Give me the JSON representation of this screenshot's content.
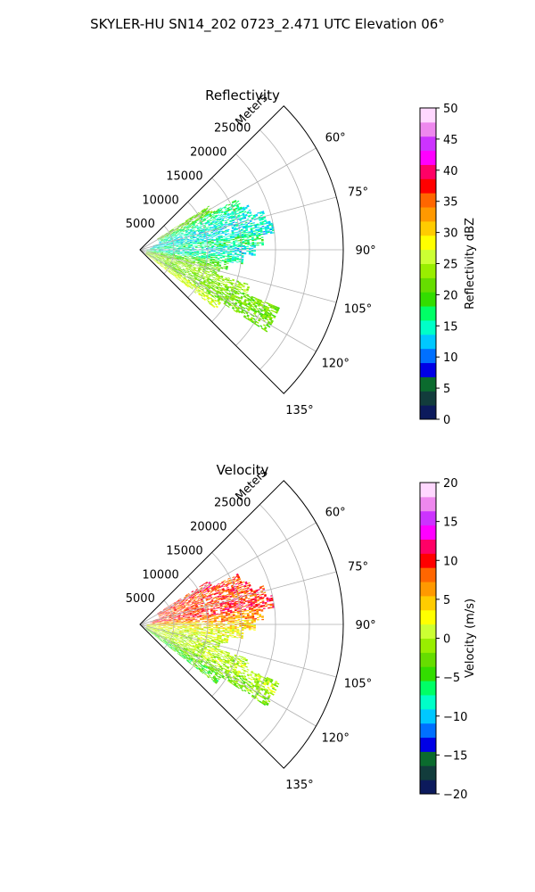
{
  "figure_title": "SKYLER-HU  SN14_202  0723_2.471 UTC Elevation 06°",
  "chart_data": [
    {
      "type": "heatmap",
      "title": "Reflectivity",
      "radial_label": "Meters",
      "radial_ticks": [
        "5000",
        "10000",
        "15000",
        "20000",
        "25000"
      ],
      "radial_tick_values": [
        5000,
        10000,
        15000,
        20000,
        25000
      ],
      "rlim": [
        0,
        30000
      ],
      "angle_ticks": [
        "60°",
        "75°",
        "90°",
        "105°",
        "120°",
        "135°"
      ],
      "angle_tick_values": [
        60,
        75,
        90,
        105,
        120,
        135
      ],
      "thetalim": [
        45,
        135
      ],
      "grid": true,
      "colorbar": {
        "label": "Reflectivity dBZ",
        "ticks": [
          "0",
          "5",
          "10",
          "15",
          "20",
          "25",
          "30",
          "35",
          "40",
          "45",
          "50"
        ],
        "range": [
          0,
          50
        ]
      },
      "colormap": [
        "#0c1a5c",
        "#123c3c",
        "#0b6b2e",
        "#0000e6",
        "#0070ff",
        "#00c8ff",
        "#00ffc8",
        "#00ff66",
        "#33dd00",
        "#66dd00",
        "#99ee00",
        "#ccff33",
        "#ffff00",
        "#ffcc00",
        "#ff9900",
        "#ff6600",
        "#ff0000",
        "#ff0066",
        "#ff00ff",
        "#cc33ff",
        "#ee88ee",
        "#ffd8ff"
      ],
      "field_summary": [
        {
          "az": 60,
          "r0": 3000,
          "r1": 12000,
          "value": 22
        },
        {
          "az": 65,
          "r0": 3000,
          "r1": 16000,
          "value": 17
        },
        {
          "az": 70,
          "r0": 3000,
          "r1": 17000,
          "value": 15
        },
        {
          "az": 75,
          "r0": 2000,
          "r1": 19000,
          "value": 14
        },
        {
          "az": 80,
          "r0": 1500,
          "r1": 20000,
          "value": 14
        },
        {
          "az": 85,
          "r0": 1500,
          "r1": 18000,
          "value": 17
        },
        {
          "az": 90,
          "r0": 1000,
          "r1": 17000,
          "value": 14
        },
        {
          "az": 95,
          "r0": 1000,
          "r1": 15000,
          "value": 16
        },
        {
          "az": 100,
          "r0": 1000,
          "r1": 13000,
          "value": 20
        },
        {
          "az": 105,
          "r0": 1000,
          "r1": 12000,
          "value": 22
        },
        {
          "az": 110,
          "r0": 1000,
          "r1": 17000,
          "value": 24
        },
        {
          "az": 115,
          "r0": 1000,
          "r1": 22000,
          "value": 22
        },
        {
          "az": 120,
          "r0": 1000,
          "r1": 22000,
          "value": 22
        },
        {
          "az": 125,
          "r0": 1000,
          "r1": 14000,
          "value": 26
        }
      ]
    },
    {
      "type": "heatmap",
      "title": "Velocity",
      "radial_label": "Meters",
      "radial_ticks": [
        "5000",
        "10000",
        "15000",
        "20000",
        "25000"
      ],
      "radial_tick_values": [
        5000,
        10000,
        15000,
        20000,
        25000
      ],
      "rlim": [
        0,
        30000
      ],
      "angle_ticks": [
        "60°",
        "75°",
        "90°",
        "105°",
        "120°",
        "135°"
      ],
      "angle_tick_values": [
        60,
        75,
        90,
        105,
        120,
        135
      ],
      "thetalim": [
        45,
        135
      ],
      "grid": true,
      "colorbar": {
        "label": "Velocity (m/s)",
        "ticks": [
          "−20",
          "−15",
          "−10",
          "−5",
          "0",
          "5",
          "10",
          "15",
          "20"
        ],
        "range": [
          -20,
          20
        ]
      },
      "colormap": [
        "#0c1a5c",
        "#123c3c",
        "#0b6b2e",
        "#0000e6",
        "#0070ff",
        "#00c8ff",
        "#00ffc8",
        "#00ff66",
        "#33dd00",
        "#66dd00",
        "#99ee00",
        "#ccff33",
        "#ffff00",
        "#ffcc00",
        "#ff9900",
        "#ff6600",
        "#ff0000",
        "#ff0066",
        "#ff00ff",
        "#cc33ff",
        "#ee88ee",
        "#ffd8ff"
      ],
      "field_summary": [
        {
          "az": 60,
          "r0": 3000,
          "r1": 12000,
          "value": 10
        },
        {
          "az": 65,
          "r0": 3000,
          "r1": 16000,
          "value": 9
        },
        {
          "az": 70,
          "r0": 3000,
          "r1": 17000,
          "value": 9
        },
        {
          "az": 75,
          "r0": 2000,
          "r1": 19000,
          "value": 9
        },
        {
          "az": 80,
          "r0": 1500,
          "r1": 20000,
          "value": 10
        },
        {
          "az": 85,
          "r0": 1500,
          "r1": 18000,
          "value": 7
        },
        {
          "az": 90,
          "r0": 1000,
          "r1": 17000,
          "value": 4
        },
        {
          "az": 95,
          "r0": 1000,
          "r1": 15000,
          "value": 2
        },
        {
          "az": 100,
          "r0": 1000,
          "r1": 13000,
          "value": 1
        },
        {
          "az": 105,
          "r0": 1000,
          "r1": 12000,
          "value": 0
        },
        {
          "az": 110,
          "r0": 1000,
          "r1": 17000,
          "value": 0
        },
        {
          "az": 115,
          "r0": 1000,
          "r1": 22000,
          "value": 0
        },
        {
          "az": 120,
          "r0": 1000,
          "r1": 22000,
          "value": -2
        },
        {
          "az": 125,
          "r0": 1000,
          "r1": 14000,
          "value": -4
        }
      ]
    }
  ]
}
